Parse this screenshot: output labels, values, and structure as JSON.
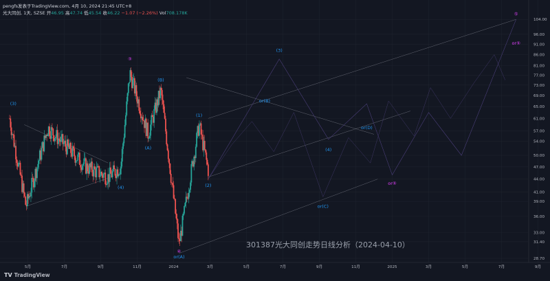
{
  "header": {
    "line1": "pengfs发表于TradingView.com, 4月 10, 2024 21:45 UTC+8",
    "symbol": "光大同创, 1天, SZSE",
    "open_label": "开",
    "open": "46.95",
    "high_label": "高",
    "high": "47.74",
    "low_label": "低",
    "low": "45.54",
    "close_label": "收",
    "close": "46.22",
    "change": "−1.07 (−2.26%)",
    "vol_label": "Vol",
    "volume": "708.178K"
  },
  "caption": "301387光大同创走势日线分析（2024-04-10）",
  "logo": {
    "mark": "T𝗩",
    "text": "TradingView"
  },
  "colors": {
    "background": "#131722",
    "up": "#26a69a",
    "down": "#ef5350",
    "wave_blue": "#2196f3",
    "wave_magenta": "#e040fb",
    "trendline": "#787b86"
  },
  "chart_data": {
    "type": "candlestick",
    "y_scale": "log",
    "ylim": [
      28.5,
      108
    ],
    "y_ticks": [
      "104.00",
      "96.00",
      "91.00",
      "86.00",
      "81.00",
      "77.00",
      "73.00",
      "69.00",
      "65.00",
      "61.00",
      "57.00",
      "54.00",
      "50.00",
      "47.00",
      "44.00",
      "41.00",
      "39.00",
      "36.00",
      "33.00",
      "31.40",
      "28.70"
    ],
    "x_ticks": [
      "5月",
      "7月",
      "9月",
      "11月",
      "2024",
      "3月",
      "5月",
      "7月",
      "9月",
      "11月",
      "2025",
      "3月",
      "5月",
      "7月",
      "9月"
    ],
    "candles_summary": {
      "start": "2023-04",
      "end": "2024-04-10",
      "last_close": 46.22
    },
    "key_points": [
      {
        "date": "2023-04",
        "price": 61
      },
      {
        "date": "2023-05",
        "price": 38
      },
      {
        "date": "2023-06",
        "price": 58
      },
      {
        "date": "2023-09",
        "price": 44.5
      },
      {
        "date": "2023-10",
        "price": 47
      },
      {
        "date": "2023-11",
        "price": 78
      },
      {
        "date": "2023-12",
        "price": 56
      },
      {
        "date": "2023-12",
        "price": 71
      },
      {
        "date": "2024-02",
        "price": 31
      },
      {
        "date": "2024-03",
        "price": 59
      },
      {
        "date": "2024-04",
        "price": 46.22
      }
    ],
    "wave_labels": [
      {
        "text": "(3)",
        "color": "blue"
      },
      {
        "text": "(4)",
        "color": "blue"
      },
      {
        "text": "③",
        "color": "magenta"
      },
      {
        "text": "(A)",
        "color": "blue"
      },
      {
        "text": "(B)",
        "color": "blue"
      },
      {
        "text": "④",
        "color": "magenta"
      },
      {
        "text": "or(A)",
        "color": "blue"
      },
      {
        "text": "(1)",
        "color": "blue"
      },
      {
        "text": "(2)",
        "color": "blue"
      },
      {
        "text": "(3)",
        "color": "blue"
      },
      {
        "text": "or(B)",
        "color": "blue"
      },
      {
        "text": "(4)",
        "color": "blue"
      },
      {
        "text": "or(C)",
        "color": "blue"
      },
      {
        "text": "or(D)",
        "color": "blue"
      },
      {
        "text": "or⑤",
        "color": "magenta"
      },
      {
        "text": "⑤",
        "color": "magenta"
      },
      {
        "text": "or⑤",
        "color": "magenta"
      }
    ]
  }
}
